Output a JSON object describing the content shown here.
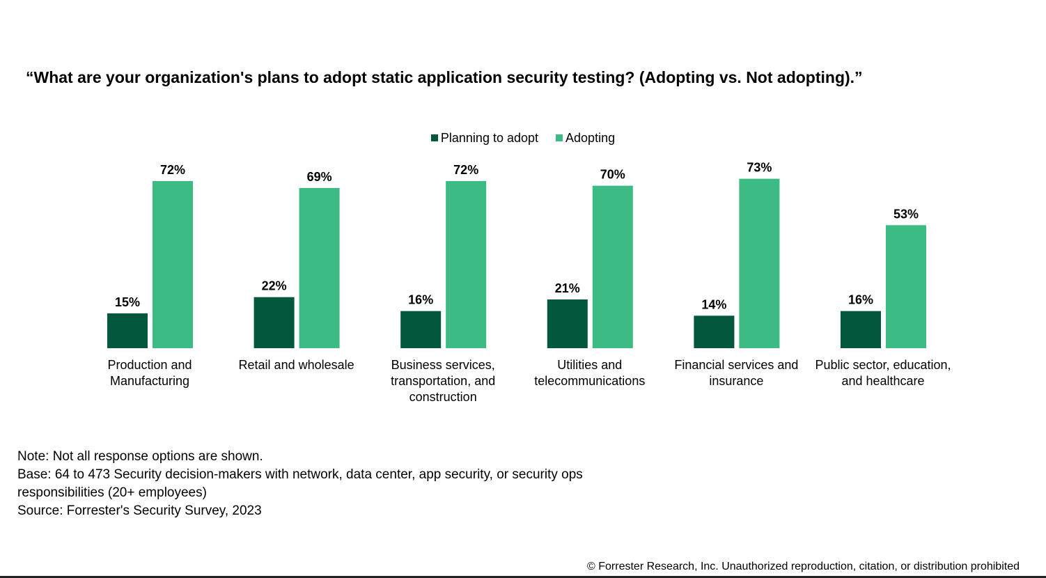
{
  "chart_data": {
    "type": "bar",
    "title": "“What are your organization's plans to adopt static application security testing? (Adopting vs. Not adopting).”",
    "categories": [
      "Production and Manufacturing",
      "Retail and wholesale",
      "Business services, transportation,  and construction",
      "Utilities and telecommunications",
      "Financial services and insurance",
      "Public sector, education, and healthcare"
    ],
    "series": [
      {
        "name": "Planning to adopt",
        "color": "#02573E",
        "values": [
          15,
          22,
          16,
          21,
          14,
          16
        ]
      },
      {
        "name": "Adopting",
        "color": "#3DBB84",
        "values": [
          72,
          69,
          72,
          70,
          73,
          53
        ]
      }
    ],
    "value_suffix": "%",
    "ylim": [
      0,
      100
    ],
    "grid": false,
    "legend_position": "top-center",
    "xlabel": "",
    "ylabel": ""
  },
  "notes": [
    "Note: Not all response options are shown.",
    "Base: 64 to 473 Security decision-makers with network, data center, app security, or security ops",
    "responsibilities (20+ employees)",
    "Source: Forrester's Security Survey, 2023"
  ],
  "copyright": "© Forrester Research, Inc. Unauthorized reproduction, citation, or distribution prohibited"
}
